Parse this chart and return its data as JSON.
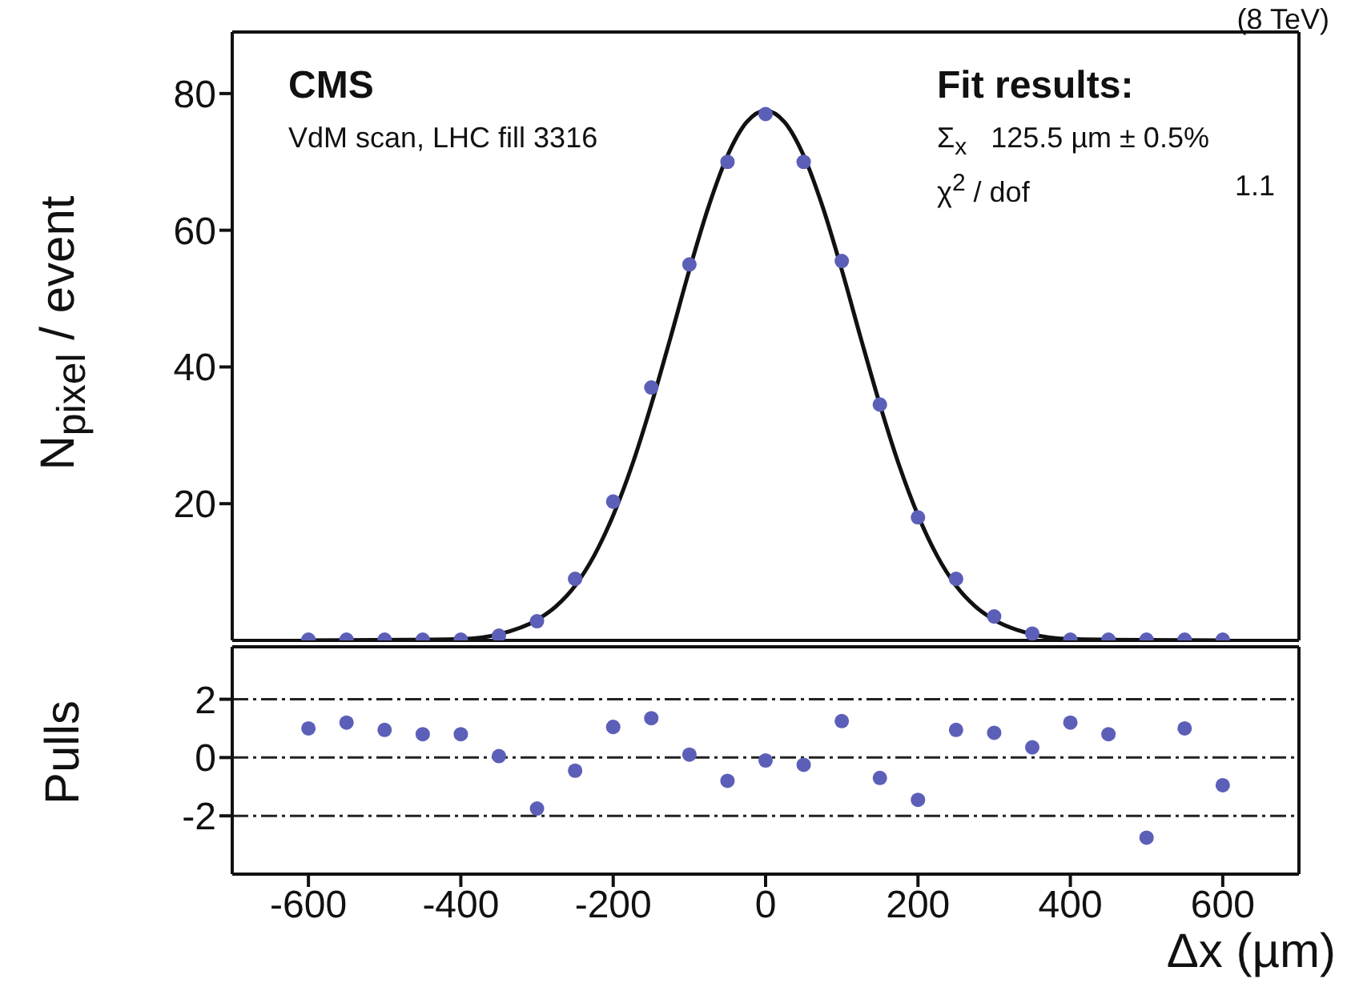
{
  "chart_data": [
    {
      "type": "scatter",
      "ylabel": "N$_{pixel}$ / event",
      "xlim": [
        -700,
        700
      ],
      "xticks": [
        -600,
        -400,
        -200,
        0,
        200,
        400,
        600
      ],
      "ylim": [
        0,
        89
      ],
      "yticks": [
        20,
        40,
        60,
        80
      ],
      "tick_labels": "y",
      "annotations": [
        "(8 TeV)",
        "CMS",
        "VdM scan, LHC fill 3316",
        "Fit results:",
        "Σ$_{x}$   125.5 µm ± 0.5%",
        "χ$^{2}$ / dof",
        "1.1"
      ],
      "series": [
        {
          "marker": "circle",
          "color": "#5c5fb8",
          "x": [
            -600,
            -550,
            -500,
            -450,
            -400,
            -350,
            -300,
            -250,
            -200,
            -150,
            -100,
            -50,
            0,
            50,
            100,
            150,
            200,
            250,
            300,
            350,
            400,
            450,
            500,
            550,
            600
          ],
          "values": [
            0.1,
            0.1,
            0.1,
            0.1,
            0.1,
            0.7,
            2.8,
            9,
            20.3,
            37,
            55,
            70,
            77,
            70,
            55.5,
            34.5,
            18,
            9,
            3.5,
            1,
            0.1,
            0.1,
            0.1,
            0.1,
            0.1
          ]
        },
        {
          "type": "line",
          "color": "#111111",
          "line_style": "solid",
          "x": [
            -600,
            -450,
            -400,
            -350,
            -300,
            -275,
            -250,
            -225,
            -200,
            -175,
            -150,
            -125,
            -100,
            -75,
            -50,
            -25,
            0,
            25,
            50,
            75,
            100,
            125,
            150,
            175,
            200,
            225,
            250,
            275,
            300,
            350,
            400,
            450,
            600
          ],
          "values": [
            0,
            0.1,
            0.2,
            0.9,
            3,
            5,
            8,
            12.4,
            18.3,
            25.7,
            34.5,
            44.2,
            54.2,
            63.4,
            70.9,
            75.8,
            77.5,
            75.8,
            70.9,
            63.4,
            54.2,
            44.2,
            34.5,
            25.7,
            18.3,
            12.4,
            8,
            5,
            3,
            0.9,
            0.2,
            0.1,
            0
          ]
        }
      ]
    },
    {
      "type": "scatter",
      "ylabel": "Pulls",
      "xlabel": "Δx (µm)",
      "xlim": [
        -700,
        700
      ],
      "xticks": [
        -600,
        -400,
        -200,
        0,
        200,
        400,
        600
      ],
      "ylim": [
        -4,
        3.8
      ],
      "yticks": [
        -2,
        0,
        2
      ],
      "ref_lines": [
        {
          "axis": "y",
          "value": -2,
          "line_style": "dashdot",
          "color": "#222222"
        },
        {
          "axis": "y",
          "value": 0,
          "line_style": "dashdot",
          "color": "#222222"
        },
        {
          "axis": "y",
          "value": 2,
          "line_style": "dashdot",
          "color": "#222222"
        }
      ],
      "series": [
        {
          "marker": "circle",
          "color": "#5c5fb8",
          "x": [
            -600,
            -550,
            -500,
            -450,
            -400,
            -350,
            -300,
            -250,
            -200,
            -150,
            -100,
            -50,
            0,
            50,
            100,
            150,
            200,
            250,
            300,
            350,
            400,
            450,
            500,
            550,
            600
          ],
          "values": [
            1.0,
            1.2,
            0.95,
            0.8,
            0.8,
            0.05,
            -1.75,
            -0.45,
            1.05,
            1.35,
            0.1,
            -0.8,
            -0.1,
            -0.25,
            1.25,
            -0.7,
            -1.45,
            0.95,
            0.85,
            0.35,
            1.2,
            0.8,
            -2.75,
            1.0,
            -0.95
          ]
        }
      ]
    }
  ]
}
